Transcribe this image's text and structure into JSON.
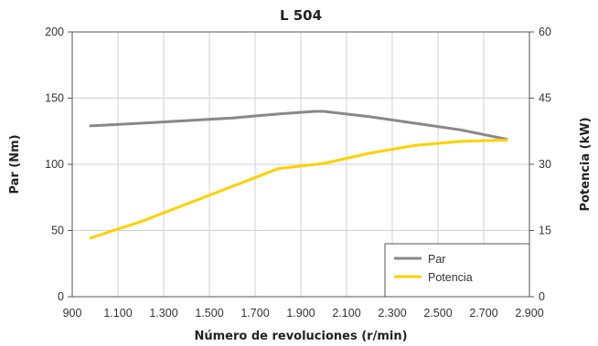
{
  "chart_data": {
    "type": "line",
    "title": "L 504",
    "xlabel": "Número de revoluciones (r/min)",
    "ylabel_left": "Par (Nm)",
    "ylabel_right": "Potencia (kW)",
    "xlim": [
      900,
      2900
    ],
    "ylim_left": [
      0,
      200
    ],
    "ylim_right": [
      0,
      60
    ],
    "x_ticks": [
      900,
      1100,
      1300,
      1500,
      1700,
      1900,
      2100,
      2300,
      2500,
      2700,
      2900
    ],
    "x_tick_labels": [
      "900",
      "1.100",
      "1.300",
      "1.500",
      "1.700",
      "1.900",
      "2.100",
      "2.300",
      "2.500",
      "2.700",
      "2.900"
    ],
    "y_left_ticks": [
      0,
      50,
      100,
      150,
      200
    ],
    "y_left_tick_labels": [
      "0",
      "50",
      "100",
      "150",
      "200"
    ],
    "y_right_ticks": [
      0,
      15,
      30,
      45,
      60
    ],
    "y_right_tick_labels": [
      "0",
      "15",
      "30",
      "45",
      "60"
    ],
    "grid": true,
    "legend_position": "bottom-right",
    "series": [
      {
        "name": "Par",
        "axis": "left",
        "color": "#888888",
        "x": [
          980,
          1200,
          1400,
          1600,
          1800,
          1960,
          2000,
          2200,
          2400,
          2600,
          2800
        ],
        "y": [
          129,
          131,
          133,
          135,
          138,
          140,
          140,
          136,
          131,
          126,
          119
        ]
      },
      {
        "name": "Potencia",
        "axis": "right",
        "color": "#ffd000",
        "x": [
          980,
          1200,
          1400,
          1600,
          1800,
          2000,
          2200,
          2400,
          2600,
          2800
        ],
        "y": [
          13.3,
          17,
          21,
          25,
          29,
          30.2,
          32.5,
          34.3,
          35.2,
          35.5
        ]
      }
    ]
  }
}
